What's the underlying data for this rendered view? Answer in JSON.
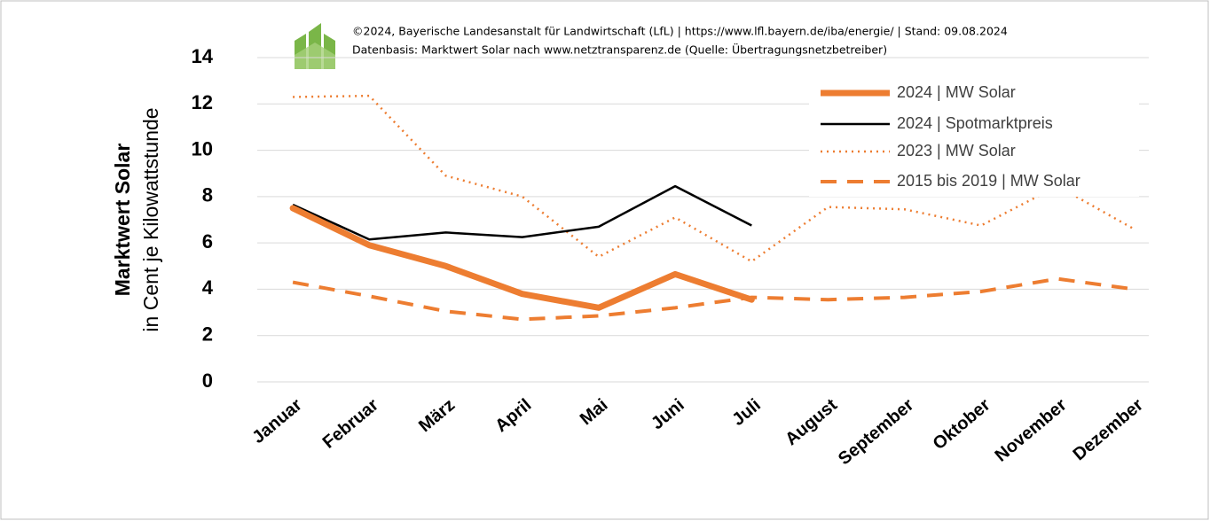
{
  "chart_data": {
    "type": "line",
    "header": [
      "©2024, Bayerische Landesanstalt für Landwirtschaft (LfL)  |  https://www.lfl.bayern.de/iba/energie/  |  Stand: 09.08.2024",
      "Datenbasis: Marktwert Solar nach www.netztransparenz.de (Quelle: Übertragungsnetzbetreiber)"
    ],
    "y_label": "Marktwert Solar",
    "y_sublabel": "in Cent je Kilowattstunde",
    "categories": [
      "Januar",
      "Februar",
      "März",
      "April",
      "Mai",
      "Juni",
      "Juli",
      "August",
      "September",
      "Oktober",
      "November",
      "Dezember"
    ],
    "series": [
      {
        "name": "2024 | MW Solar",
        "color": "#ed7d31",
        "style": "thick",
        "values": [
          7.5,
          5.9,
          5.0,
          3.8,
          3.2,
          4.65,
          3.55,
          null,
          null,
          null,
          null,
          null
        ]
      },
      {
        "name": "2024 | Spotmarktpreis",
        "color": "#000000",
        "style": "solid",
        "values": [
          7.65,
          6.15,
          6.45,
          6.25,
          6.7,
          8.45,
          6.75,
          null,
          null,
          null,
          null,
          null
        ]
      },
      {
        "name": "2023 | MW Solar",
        "color": "#ed7d31",
        "style": "dotted",
        "values": [
          12.3,
          12.35,
          8.9,
          8.0,
          5.4,
          7.1,
          5.2,
          7.55,
          7.45,
          6.75,
          8.45,
          6.6
        ]
      },
      {
        "name": "2015 bis 2019 | MW Solar",
        "color": "#ed7d31",
        "style": "dashed",
        "values": [
          4.3,
          3.7,
          3.05,
          2.7,
          2.85,
          3.2,
          3.65,
          3.55,
          3.65,
          3.9,
          4.45,
          4.0
        ]
      }
    ],
    "ylim": [
      0,
      14
    ],
    "yticks": [
      0,
      2,
      4,
      6,
      8,
      10,
      12,
      14
    ],
    "grid": true,
    "legend": "upper right"
  }
}
